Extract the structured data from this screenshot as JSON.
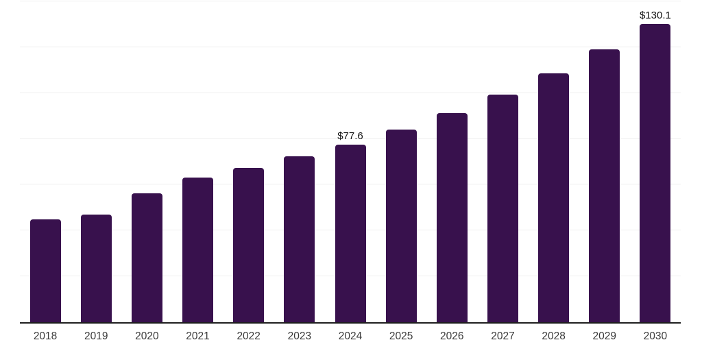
{
  "chart": {
    "background_color": "#ffffff",
    "bar_color": "#38114d",
    "axis_color": "#1f1f1f",
    "gridline_color": "#eeeeee",
    "tick_label_color": "#3a3a3a",
    "data_label_color": "#111111"
  },
  "chart_data": {
    "type": "bar",
    "title": "",
    "xlabel": "",
    "ylabel": "",
    "categories": [
      "2018",
      "2019",
      "2020",
      "2021",
      "2022",
      "2023",
      "2024",
      "2025",
      "2026",
      "2027",
      "2028",
      "2029",
      "2030"
    ],
    "values": [
      44.8,
      47.1,
      56.2,
      63.2,
      67.2,
      72.3,
      77.6,
      84.1,
      91.3,
      99.4,
      108.5,
      119.0,
      130.1
    ],
    "data_labels": [
      null,
      null,
      null,
      null,
      null,
      null,
      "$77.6",
      null,
      null,
      null,
      null,
      null,
      "$130.1"
    ],
    "ylim": [
      0,
      140
    ],
    "gridline_step": 20,
    "grid": "horizontal",
    "y_tick_labels_shown": false,
    "legend_position": "none",
    "currency_unit": "$"
  }
}
